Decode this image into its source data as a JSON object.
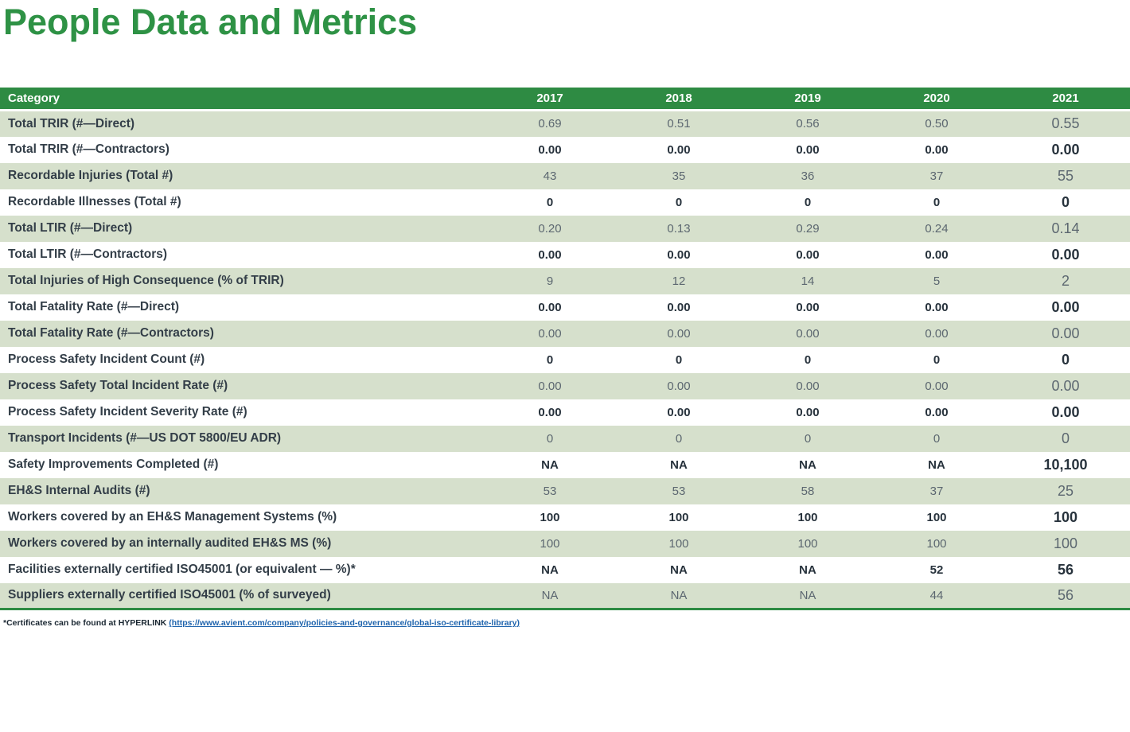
{
  "page": {
    "title": "People Data and Metrics"
  },
  "colors": {
    "title_green": "#2e9245",
    "header_green": "#2e8b43",
    "row_green": "#d6e0cc",
    "category_text": "#333e48",
    "value_muted": "#5c6770",
    "value_dark": "#27323c",
    "link_blue": "#1f64ad"
  },
  "table": {
    "columns": [
      "Category",
      "2017",
      "2018",
      "2019",
      "2020",
      "2021"
    ],
    "rows": [
      {
        "category": "Total TRIR (#—Direct)",
        "values": [
          "0.69",
          "0.51",
          "0.56",
          "0.50",
          "0.55"
        ]
      },
      {
        "category": "Total TRIR (#—Contractors)",
        "values": [
          "0.00",
          "0.00",
          "0.00",
          "0.00",
          "0.00"
        ]
      },
      {
        "category": "Recordable Injuries (Total #)",
        "values": [
          "43",
          "35",
          "36",
          "37",
          "55"
        ]
      },
      {
        "category": "Recordable Illnesses (Total #)",
        "values": [
          "0",
          "0",
          "0",
          "0",
          "0"
        ]
      },
      {
        "category": "Total LTIR (#—Direct)",
        "values": [
          "0.20",
          "0.13",
          "0.29",
          "0.24",
          "0.14"
        ]
      },
      {
        "category": "Total LTIR (#—Contractors)",
        "values": [
          "0.00",
          "0.00",
          "0.00",
          "0.00",
          "0.00"
        ]
      },
      {
        "category": "Total Injuries of High Consequence (% of TRIR)",
        "values": [
          "9",
          "12",
          "14",
          "5",
          "2"
        ]
      },
      {
        "category": "Total Fatality Rate (#—Direct)",
        "values": [
          "0.00",
          "0.00",
          "0.00",
          "0.00",
          "0.00"
        ]
      },
      {
        "category": "Total Fatality Rate (#—Contractors)",
        "values": [
          "0.00",
          "0.00",
          "0.00",
          "0.00",
          "0.00"
        ]
      },
      {
        "category": "Process Safety Incident Count (#)",
        "values": [
          "0",
          "0",
          "0",
          "0",
          "0"
        ]
      },
      {
        "category": "Process Safety Total Incident Rate (#)",
        "values": [
          "0.00",
          "0.00",
          "0.00",
          "0.00",
          "0.00"
        ]
      },
      {
        "category": "Process Safety Incident Severity Rate (#)",
        "values": [
          "0.00",
          "0.00",
          "0.00",
          "0.00",
          "0.00"
        ]
      },
      {
        "category": "Transport Incidents (#—US DOT 5800/EU ADR)",
        "values": [
          "0",
          "0",
          "0",
          "0",
          "0"
        ]
      },
      {
        "category": "Safety Improvements Completed (#)",
        "values": [
          "NA",
          "NA",
          "NA",
          "NA",
          "10,100"
        ]
      },
      {
        "category": "EH&S Internal Audits (#)",
        "values": [
          "53",
          "53",
          "58",
          "37",
          "25"
        ]
      },
      {
        "category": "Workers covered by an EH&S Management Systems (%)",
        "values": [
          "100",
          "100",
          "100",
          "100",
          "100"
        ]
      },
      {
        "category": "Workers covered by an internally audited EH&S MS (%)",
        "values": [
          "100",
          "100",
          "100",
          "100",
          "100"
        ]
      },
      {
        "category": "Facilities externally certified ISO45001 (or equivalent — %)*",
        "values": [
          "NA",
          "NA",
          "NA",
          "52",
          "56"
        ]
      },
      {
        "category": "Suppliers externally certified ISO45001 (% of surveyed)",
        "values": [
          "NA",
          "NA",
          "NA",
          "44",
          "56"
        ]
      }
    ]
  },
  "footnote": {
    "prefix": "*Certificates can be found at HYPERLINK ",
    "link_text": "(https://www.avient.com/company/policies-and-governance/global-iso-certificate-library)"
  }
}
